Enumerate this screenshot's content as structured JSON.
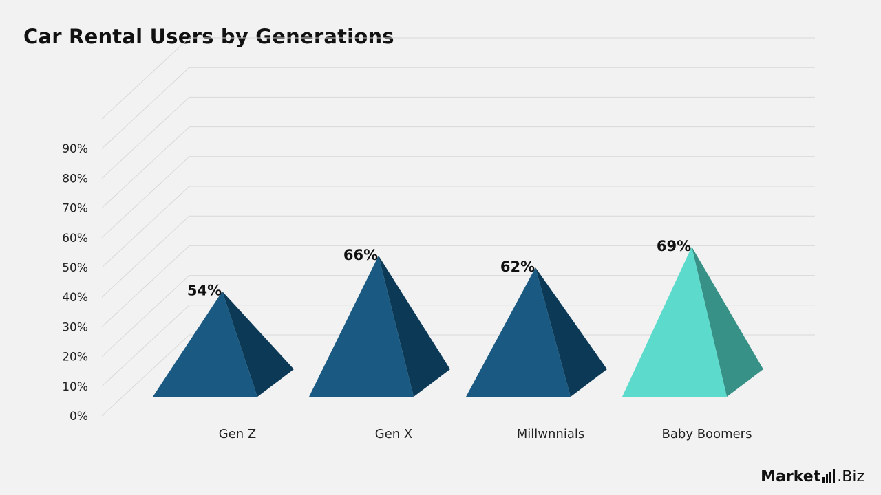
{
  "chart_data": {
    "type": "bar",
    "style": "3d-pyramid",
    "title": "Car Rental Users by Generations",
    "categories": [
      "Gen Z",
      "Gen X",
      "Millwnnials",
      "Baby Boomers"
    ],
    "values": [
      54,
      66,
      62,
      69
    ],
    "data_labels": [
      "54%",
      "66%",
      "62%",
      "69%"
    ],
    "y_tick_labels": [
      "0%",
      "10%",
      "20%",
      "30%",
      "40%",
      "50%",
      "60%",
      "70%",
      "80%",
      "90%"
    ],
    "ylim": [
      0,
      100
    ],
    "xlabel": "",
    "ylabel": "",
    "grid": true,
    "highlight_index": 3,
    "colors": {
      "front": "#1a5a82",
      "side": "#0c3955",
      "highlight_front": "#5cdbcd",
      "highlight_side": "#379186",
      "grid": "#d8d8d8",
      "background": "#f2f2f2"
    }
  },
  "brand": {
    "name": "Market",
    "suffix": ".Biz"
  }
}
